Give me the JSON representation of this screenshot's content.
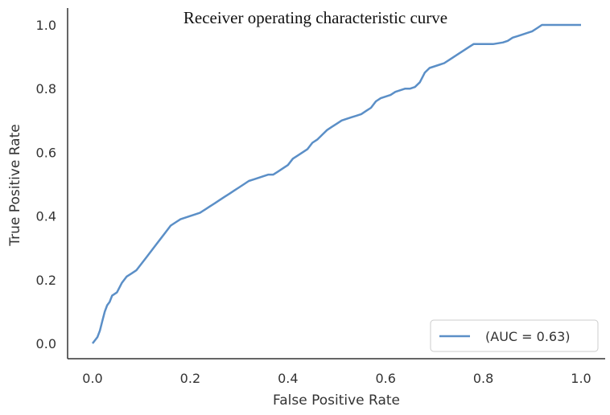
{
  "chart_data": {
    "type": "line",
    "title": "Receiver operating characteristic curve",
    "xlabel": "False Positive Rate",
    "ylabel": "True Positive Rate",
    "xlim": [
      -0.05,
      1.05
    ],
    "ylim": [
      -0.05,
      1.05
    ],
    "xticks": [
      "0.0",
      "0.2",
      "0.4",
      "0.6",
      "0.8",
      "1.0"
    ],
    "yticks": [
      "0.0",
      "0.2",
      "0.4",
      "0.6",
      "0.8",
      "1.0"
    ],
    "grid": false,
    "legend_position": "lower-right",
    "colors": {
      "line": "#5b8fc7",
      "axis": "#333333"
    },
    "series": [
      {
        "name": "(AUC = 0.63)",
        "x": [
          0.0,
          0.01,
          0.015,
          0.02,
          0.025,
          0.03,
          0.035,
          0.04,
          0.05,
          0.06,
          0.07,
          0.08,
          0.09,
          0.1,
          0.11,
          0.12,
          0.13,
          0.14,
          0.15,
          0.16,
          0.17,
          0.18,
          0.2,
          0.21,
          0.22,
          0.23,
          0.24,
          0.25,
          0.26,
          0.27,
          0.28,
          0.29,
          0.3,
          0.31,
          0.32,
          0.33,
          0.34,
          0.35,
          0.36,
          0.37,
          0.38,
          0.39,
          0.4,
          0.41,
          0.42,
          0.43,
          0.44,
          0.45,
          0.46,
          0.47,
          0.48,
          0.49,
          0.5,
          0.51,
          0.52,
          0.53,
          0.54,
          0.55,
          0.56,
          0.57,
          0.58,
          0.59,
          0.6,
          0.61,
          0.62,
          0.63,
          0.64,
          0.65,
          0.66,
          0.67,
          0.68,
          0.69,
          0.7,
          0.71,
          0.72,
          0.73,
          0.74,
          0.75,
          0.76,
          0.77,
          0.78,
          0.8,
          0.82,
          0.84,
          0.85,
          0.86,
          0.87,
          0.88,
          0.89,
          0.9,
          0.91,
          0.92,
          0.93,
          0.94,
          1.0
        ],
        "y": [
          0.0,
          0.02,
          0.04,
          0.07,
          0.1,
          0.12,
          0.13,
          0.15,
          0.16,
          0.19,
          0.21,
          0.22,
          0.23,
          0.25,
          0.27,
          0.29,
          0.31,
          0.33,
          0.35,
          0.37,
          0.38,
          0.39,
          0.4,
          0.405,
          0.41,
          0.42,
          0.43,
          0.44,
          0.45,
          0.46,
          0.47,
          0.48,
          0.49,
          0.5,
          0.51,
          0.515,
          0.52,
          0.525,
          0.53,
          0.53,
          0.54,
          0.55,
          0.56,
          0.58,
          0.59,
          0.6,
          0.61,
          0.63,
          0.64,
          0.655,
          0.67,
          0.68,
          0.69,
          0.7,
          0.705,
          0.71,
          0.715,
          0.72,
          0.73,
          0.74,
          0.76,
          0.77,
          0.775,
          0.78,
          0.79,
          0.795,
          0.8,
          0.8,
          0.805,
          0.82,
          0.85,
          0.865,
          0.87,
          0.875,
          0.88,
          0.89,
          0.9,
          0.91,
          0.92,
          0.93,
          0.94,
          0.94,
          0.94,
          0.945,
          0.95,
          0.96,
          0.965,
          0.97,
          0.975,
          0.98,
          0.99,
          1.0,
          1.0,
          1.0,
          1.0
        ]
      }
    ]
  }
}
